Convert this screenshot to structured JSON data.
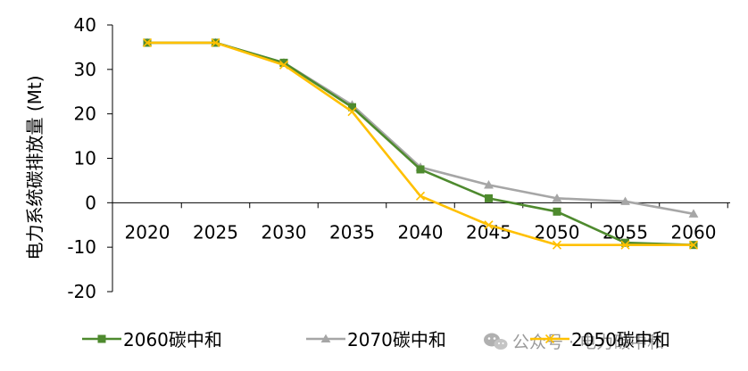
{
  "chart_data": {
    "type": "line",
    "title": "",
    "xlabel": "",
    "ylabel": "电力系统碳排放量 (Mt)",
    "ylim": [
      -20,
      40
    ],
    "yticks": [
      -20,
      -10,
      0,
      10,
      20,
      30,
      40
    ],
    "categories": [
      "2020",
      "2025",
      "2030",
      "2035",
      "2040",
      "2045",
      "2050",
      "2055",
      "2060"
    ],
    "grid": false,
    "legend_position": "bottom",
    "series": [
      {
        "name": "2060碳中和",
        "color": "#4e8a2e",
        "marker": "square",
        "values": [
          36,
          36,
          31.5,
          21.5,
          7.5,
          1,
          -2,
          -9,
          -9.5
        ]
      },
      {
        "name": "2070碳中和",
        "color": "#a6a6a6",
        "marker": "triangle",
        "values": [
          36,
          36,
          31.5,
          22,
          8,
          4,
          1,
          0.3,
          -2.5
        ]
      },
      {
        "name": "2050碳中和",
        "color": "#ffc000",
        "marker": "x",
        "values": [
          36,
          36,
          31,
          20.5,
          1.5,
          -5,
          -9.5,
          -9.5,
          -9.5
        ]
      }
    ]
  },
  "watermark": {
    "icon": "wechat-icon",
    "text": "公众号 · 电力碳中和"
  }
}
